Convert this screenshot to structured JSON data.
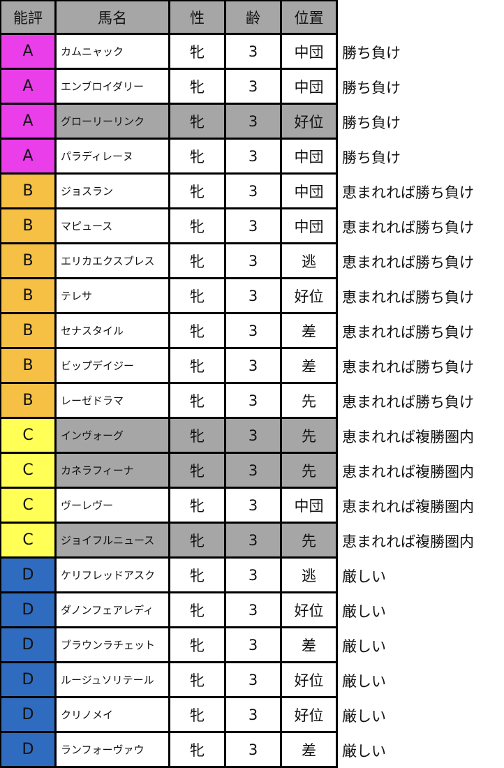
{
  "colors": {
    "A": "#e93ee9",
    "B": "#f5c044",
    "C": "#ffff55",
    "D": "#2f6cbf",
    "highlight": "#a6a6a6",
    "header": "#a6a6a6"
  },
  "headers": [
    "能評",
    "馬名",
    "性",
    "齢",
    "位置"
  ],
  "rows": [
    {
      "grade": "A",
      "name": "カムニャック",
      "sex": "牝",
      "age": "3",
      "position": "中団",
      "comment": "勝ち負け",
      "highlight": false
    },
    {
      "grade": "A",
      "name": "エンブロイダリー",
      "sex": "牝",
      "age": "3",
      "position": "中団",
      "comment": "勝ち負け",
      "highlight": false
    },
    {
      "grade": "A",
      "name": "グローリーリンク",
      "sex": "牝",
      "age": "3",
      "position": "好位",
      "comment": "勝ち負け",
      "highlight": true
    },
    {
      "grade": "A",
      "name": "パラディレーヌ",
      "sex": "牝",
      "age": "3",
      "position": "中団",
      "comment": "勝ち負け",
      "highlight": false
    },
    {
      "grade": "B",
      "name": "ジョスラン",
      "sex": "牝",
      "age": "3",
      "position": "中団",
      "comment": "恵まれれば勝ち負け",
      "highlight": false
    },
    {
      "grade": "B",
      "name": "マピュース",
      "sex": "牝",
      "age": "3",
      "position": "中団",
      "comment": "恵まれれば勝ち負け",
      "highlight": false
    },
    {
      "grade": "B",
      "name": "エリカエクスプレス",
      "sex": "牝",
      "age": "3",
      "position": "逃",
      "comment": "恵まれれば勝ち負け",
      "highlight": false
    },
    {
      "grade": "B",
      "name": "テレサ",
      "sex": "牝",
      "age": "3",
      "position": "好位",
      "comment": "恵まれれば勝ち負け",
      "highlight": false
    },
    {
      "grade": "B",
      "name": "セナスタイル",
      "sex": "牝",
      "age": "3",
      "position": "差",
      "comment": "恵まれれば勝ち負け",
      "highlight": false
    },
    {
      "grade": "B",
      "name": "ビップデイジー",
      "sex": "牝",
      "age": "3",
      "position": "差",
      "comment": "恵まれれば勝ち負け",
      "highlight": false
    },
    {
      "grade": "B",
      "name": "レーゼドラマ",
      "sex": "牝",
      "age": "3",
      "position": "先",
      "comment": "恵まれれば勝ち負け",
      "highlight": false
    },
    {
      "grade": "C",
      "name": "インヴォーグ",
      "sex": "牝",
      "age": "3",
      "position": "先",
      "comment": "恵まれれば複勝圏内",
      "highlight": true
    },
    {
      "grade": "C",
      "name": "カネラフィーナ",
      "sex": "牝",
      "age": "3",
      "position": "先",
      "comment": "恵まれれば複勝圏内",
      "highlight": true
    },
    {
      "grade": "C",
      "name": "ヴーレヴー",
      "sex": "牝",
      "age": "3",
      "position": "中団",
      "comment": "恵まれれば複勝圏内",
      "highlight": false
    },
    {
      "grade": "C",
      "name": "ジョイフルニュース",
      "sex": "牝",
      "age": "3",
      "position": "先",
      "comment": "恵まれれば複勝圏内",
      "highlight": true
    },
    {
      "grade": "D",
      "name": "ケリフレッドアスク",
      "sex": "牝",
      "age": "3",
      "position": "逃",
      "comment": "厳しい",
      "highlight": false
    },
    {
      "grade": "D",
      "name": "ダノンフェアレディ",
      "sex": "牝",
      "age": "3",
      "position": "好位",
      "comment": "厳しい",
      "highlight": false
    },
    {
      "grade": "D",
      "name": "ブラウンラチェット",
      "sex": "牝",
      "age": "3",
      "position": "差",
      "comment": "厳しい",
      "highlight": false
    },
    {
      "grade": "D",
      "name": "ルージュソリテール",
      "sex": "牝",
      "age": "3",
      "position": "好位",
      "comment": "厳しい",
      "highlight": false
    },
    {
      "grade": "D",
      "name": "クリノメイ",
      "sex": "牝",
      "age": "3",
      "position": "好位",
      "comment": "厳しい",
      "highlight": false
    },
    {
      "grade": "D",
      "name": "ランフォーヴァウ",
      "sex": "牝",
      "age": "3",
      "position": "差",
      "comment": "厳しい",
      "highlight": false
    }
  ]
}
